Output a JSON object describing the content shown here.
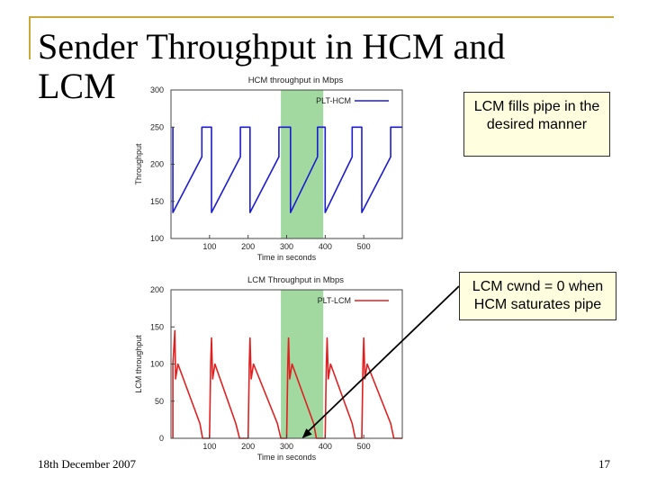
{
  "slide": {
    "title": "Sender Throughput in HCM and LCM",
    "footer_date": "18th December 2007",
    "page_number": "17",
    "callout_top": "LCM fills pipe in the desired manner",
    "callout_bottom": "LCM cwnd = 0 when HCM saturates pipe"
  },
  "colors": {
    "hcm_line": "#1c1cd0",
    "lcm_line": "#e02020",
    "highlight_band": "#6ec46e",
    "frame_accent": "#c9a93a",
    "callout_fill": "#ffffe0"
  },
  "chart_data": [
    {
      "type": "line",
      "title": "HCM throughput in Mbps",
      "xlabel": "Time in seconds",
      "ylabel": "Throughput",
      "xlim": [
        0,
        600
      ],
      "ylim": [
        100,
        300
      ],
      "xticks": [
        100,
        200,
        300,
        400,
        500
      ],
      "yticks": [
        100,
        150,
        200,
        250,
        300
      ],
      "grid": false,
      "legend_position": "top-right",
      "highlight_x": [
        285,
        395
      ],
      "series": [
        {
          "name": "PLT-HCM",
          "color": "#1c1cd0",
          "x": [
            5,
            5,
            5,
            80,
            80,
            105,
            105,
            105,
            180,
            180,
            205,
            205,
            205,
            280,
            280,
            310,
            310,
            310,
            380,
            380,
            400,
            400,
            400,
            470,
            470,
            495,
            495,
            495,
            570,
            570,
            600
          ],
          "y": [
            250,
            200,
            135,
            210,
            250,
            250,
            200,
            135,
            210,
            250,
            250,
            200,
            135,
            210,
            250,
            250,
            200,
            135,
            210,
            250,
            250,
            200,
            135,
            210,
            250,
            250,
            200,
            135,
            210,
            250,
            250
          ]
        }
      ]
    },
    {
      "type": "line",
      "title": "LCM Throughput in Mbps",
      "xlabel": "Time in seconds",
      "ylabel": "LCM throughput",
      "xlim": [
        0,
        600
      ],
      "ylim": [
        0,
        200
      ],
      "xticks": [
        100,
        200,
        300,
        400,
        500
      ],
      "yticks": [
        0,
        50,
        100,
        150,
        200
      ],
      "grid": false,
      "legend_position": "top-right",
      "highlight_x": [
        285,
        395
      ],
      "series": [
        {
          "name": "PLT-LCM",
          "color": "#e02020",
          "x": [
            5,
            5,
            10,
            12,
            18,
            75,
            82,
            100,
            103,
            105,
            108,
            114,
            168,
            178,
            200,
            203,
            205,
            208,
            214,
            276,
            285,
            300,
            303,
            305,
            308,
            314,
            370,
            377,
            400,
            403,
            405,
            408,
            414,
            470,
            478,
            495,
            498,
            500,
            503,
            509,
            570,
            578,
            600
          ],
          "y": [
            0,
            100,
            145,
            80,
            100,
            20,
            0,
            0,
            100,
            135,
            80,
            100,
            20,
            0,
            0,
            100,
            135,
            80,
            100,
            20,
            0,
            0,
            100,
            135,
            80,
            100,
            20,
            0,
            0,
            100,
            135,
            80,
            100,
            20,
            0,
            0,
            100,
            135,
            80,
            100,
            20,
            0,
            0
          ]
        }
      ]
    }
  ]
}
